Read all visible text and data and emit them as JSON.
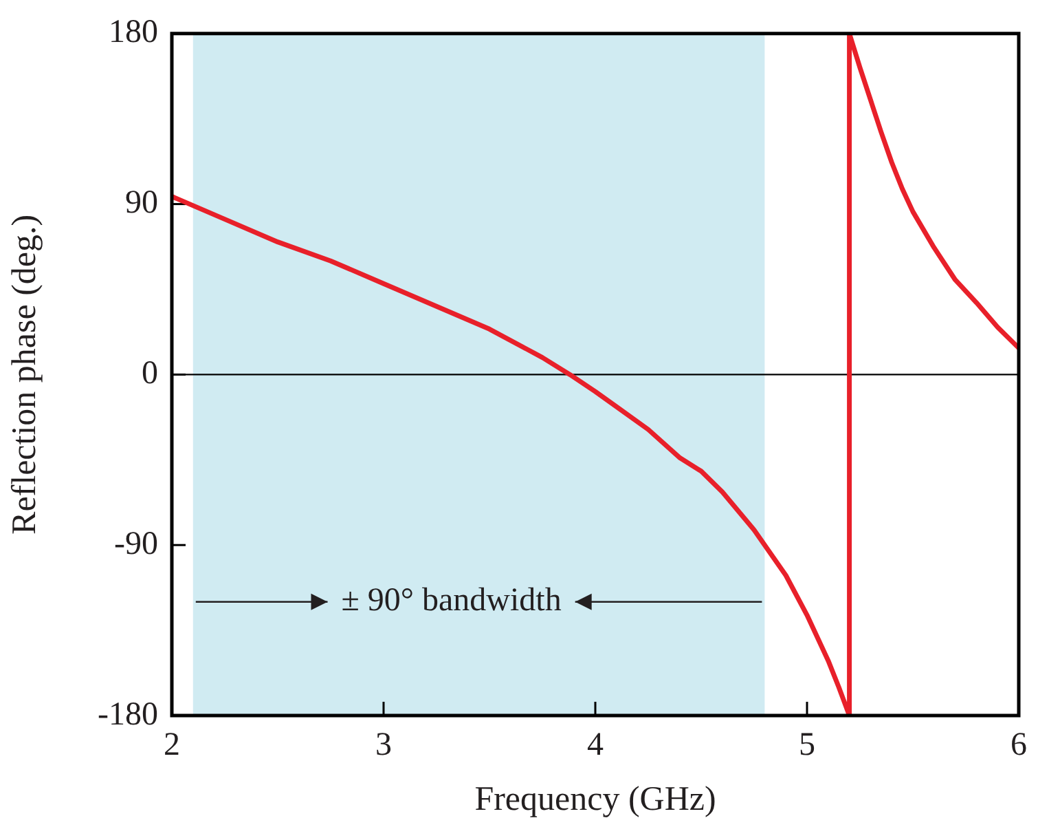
{
  "chart_data": {
    "type": "line",
    "xlabel": "Frequency (GHz)",
    "ylabel": "Reflection phase (deg.)",
    "series": [
      {
        "color": "#e8202a",
        "x": [
          2,
          2.25,
          2.5,
          2.75,
          3,
          3.25,
          3.5,
          3.75,
          3.88,
          4,
          4.1,
          4.25,
          4.4,
          4.5,
          4.6,
          4.75,
          4.9,
          5,
          5.1,
          5.15,
          5.2,
          5.2,
          5.25,
          5.3,
          5.35,
          5.4,
          5.45,
          5.5,
          5.6,
          5.7,
          5.8,
          5.9,
          6
        ],
        "values": [
          94,
          82,
          70,
          60,
          48,
          36,
          24,
          9,
          0,
          -9,
          -17,
          -29,
          -44,
          -51,
          -62,
          -82,
          -106,
          -127,
          -151,
          -165,
          -180,
          180,
          162,
          145,
          128,
          112,
          98,
          86,
          67,
          50,
          38,
          25,
          14
        ]
      }
    ],
    "xlim": [
      2,
      6
    ],
    "xticks": [
      2,
      3,
      4,
      5,
      6
    ],
    "ylim": [
      -180,
      180
    ],
    "yticks": [
      -180,
      -90,
      0,
      90,
      180
    ],
    "grid": false,
    "legend": false,
    "marker": "none",
    "line_style": "solid",
    "bands": [
      {
        "axis": "x",
        "from": 2.1,
        "to": 4.8,
        "color": "#d0ebf2"
      }
    ],
    "ref_lines": [
      {
        "axis": "y",
        "value": 0,
        "color": "#000000"
      }
    ],
    "annotations": [
      "± 90° bandwidth"
    ]
  }
}
